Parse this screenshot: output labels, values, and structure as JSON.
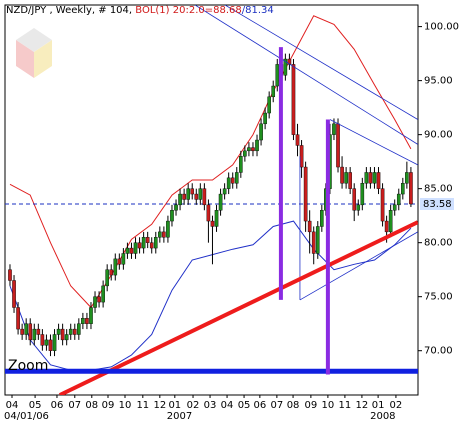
{
  "chart_data": {
    "type": "candlestick",
    "title": "NZD/JPY , Weekly, # 104, ",
    "indicator_upper": "BOL(1) 20:2.0=88.68",
    "indicator_lower": "/81.34",
    "zoom_label": "Zoom",
    "up_color": "#1f8f1f",
    "down_color": "#c81e1e",
    "xlim": [
      -1.23,
      100.75
    ],
    "ylim": [
      65.9,
      102.0
    ],
    "yticks": [
      {
        "value": 70,
        "label": "70.00"
      },
      {
        "value": 75,
        "label": "75.00"
      },
      {
        "value": 80,
        "label": "80.00"
      },
      {
        "value": 85,
        "label": "85.00"
      },
      {
        "value": 90,
        "label": "90.00"
      },
      {
        "value": 95,
        "label": "95.00"
      },
      {
        "value": 100,
        "label": "100.00"
      }
    ],
    "xticks": [
      {
        "value": 0.5,
        "label": "04"
      },
      {
        "value": 6.2,
        "label": "05"
      },
      {
        "value": 11.6,
        "label": "06"
      },
      {
        "value": 16,
        "label": "07"
      },
      {
        "value": 20.2,
        "label": "08"
      },
      {
        "value": 24.2,
        "label": "09"
      },
      {
        "value": 28.4,
        "label": "10"
      },
      {
        "value": 32.8,
        "label": "11"
      },
      {
        "value": 37,
        "label": "12"
      },
      {
        "value": 40.7,
        "label": "01"
      },
      {
        "value": 45.2,
        "label": "02"
      },
      {
        "value": 49.4,
        "label": "03"
      },
      {
        "value": 53.6,
        "label": "04"
      },
      {
        "value": 57.8,
        "label": "05"
      },
      {
        "value": 61.7,
        "label": "06"
      },
      {
        "value": 65.9,
        "label": "07"
      },
      {
        "value": 69.9,
        "label": "08"
      },
      {
        "value": 74.3,
        "label": "09"
      },
      {
        "value": 78.5,
        "label": "10"
      },
      {
        "value": 82.7,
        "label": "11"
      },
      {
        "value": 86.9,
        "label": "12"
      },
      {
        "value": 90.9,
        "label": "01"
      },
      {
        "value": 95.3,
        "label": "02"
      }
    ],
    "xlabels2": [
      {
        "value": 0.5,
        "label": "04/01/06"
      },
      {
        "value": 40.7,
        "label": "2007"
      },
      {
        "value": 90.9,
        "label": "2008"
      }
    ],
    "open": [
      77.5,
      76.5,
      74,
      72,
      71.5,
      72.5,
      71,
      72,
      71.5,
      70.5,
      71,
      70,
      71.5,
      72,
      71,
      71.5,
      72,
      71.5,
      72.5,
      73,
      72.5,
      74,
      75,
      74.5,
      76,
      77.5,
      77,
      78.5,
      78,
      79,
      79.5,
      79,
      80,
      79.5,
      80.5,
      80,
      79.5,
      80.5,
      81,
      80.5,
      82,
      83,
      83.5,
      84.5,
      84,
      85,
      84.5,
      84,
      85,
      83.5,
      82,
      81.5,
      83,
      84.5,
      85,
      86,
      85.5,
      86.5,
      88,
      88.5,
      88.8,
      88.5,
      89.5,
      91,
      92,
      93.5,
      94.5,
      96.5,
      95.5,
      97,
      96.5,
      90,
      89,
      87,
      82,
      81,
      79,
      81.5,
      83,
      85,
      90,
      91,
      87,
      85.5,
      86.5,
      85,
      83,
      83.5,
      85.5,
      86.5,
      85.5,
      86.5,
      85,
      82,
      81,
      83,
      83.5,
      84.5,
      85.5,
      86.5
    ],
    "high": [
      78,
      77,
      74.5,
      72.5,
      73,
      73,
      72.5,
      72.5,
      72,
      71.5,
      71.5,
      72,
      72.5,
      72.5,
      72,
      72.5,
      72.5,
      73,
      73.5,
      73.5,
      74.5,
      75.5,
      75.5,
      76.5,
      78,
      78,
      79,
      79,
      79.5,
      80,
      80,
      80.5,
      80.5,
      81,
      81,
      80.5,
      81,
      81.5,
      81.5,
      82.5,
      83.5,
      84,
      85,
      85,
      85.5,
      85.5,
      85,
      85.5,
      85.5,
      84,
      82.5,
      83.5,
      85,
      85.5,
      86.5,
      86.5,
      87,
      88.5,
      89,
      89.3,
      89.3,
      90,
      91.5,
      92.5,
      94,
      95,
      97,
      97.5,
      97.5,
      97.5,
      97,
      91,
      89.5,
      87.5,
      83,
      81.5,
      82,
      83.5,
      85.5,
      91,
      91.5,
      91.5,
      88,
      87,
      87,
      85.5,
      84,
      86,
      87,
      87,
      87,
      87,
      85.5,
      82.5,
      83.5,
      84,
      85,
      86,
      87.5,
      87
    ],
    "low": [
      76,
      73.5,
      71.5,
      71,
      71,
      70.5,
      70.5,
      71,
      70,
      70,
      69.5,
      69.5,
      71,
      70.5,
      70.5,
      71,
      71,
      71,
      72,
      72,
      72,
      73.5,
      74,
      74,
      75.5,
      76.5,
      76.5,
      77.5,
      77.5,
      78.5,
      78.5,
      78.5,
      79,
      79,
      79.5,
      79,
      79,
      80,
      80,
      80,
      81.5,
      82.5,
      83,
      83.5,
      83.5,
      84,
      83.5,
      83.5,
      83,
      80,
      78,
      81,
      82.5,
      84,
      84.5,
      85,
      85,
      86,
      87.5,
      88,
      88,
      88,
      89,
      90.5,
      91.5,
      93,
      94,
      95,
      95,
      96,
      89.5,
      88,
      86,
      81,
      79,
      78,
      78.5,
      81,
      82.5,
      84.5,
      89.5,
      86.5,
      85,
      85,
      84.5,
      82,
      82.5,
      83,
      85,
      85,
      85,
      84.5,
      81.5,
      80,
      80.5,
      82.5,
      83,
      84,
      85,
      83.3
    ],
    "close": [
      76.5,
      74,
      72,
      71.5,
      72.5,
      71,
      72,
      71.5,
      70.5,
      71,
      70,
      71.5,
      72,
      71,
      71.5,
      72,
      71.5,
      72.5,
      73,
      72.5,
      74,
      75,
      74.5,
      76,
      77.5,
      77,
      78.5,
      78,
      79,
      79.5,
      79,
      80,
      79.5,
      80.5,
      80,
      79.5,
      80.5,
      81,
      80.5,
      82,
      83,
      83.5,
      84.5,
      84,
      85,
      84.5,
      84,
      85,
      83.5,
      82,
      81.5,
      83,
      84.5,
      85,
      86,
      85.5,
      86.5,
      88,
      88.5,
      88.8,
      88.5,
      89.5,
      91,
      92,
      93.5,
      94.5,
      96.5,
      95.5,
      97,
      96.5,
      90,
      89,
      87,
      82,
      81,
      79,
      81.5,
      83,
      85,
      90,
      91,
      87,
      85.5,
      86.5,
      85,
      83,
      83.5,
      85.5,
      86.5,
      85.5,
      86.5,
      85,
      82,
      81,
      83,
      83.5,
      84.5,
      85.5,
      86.5,
      83.58
    ],
    "bands": [
      {
        "color": "#e02020",
        "x": [
          0,
          5,
          10,
          15,
          20,
          25,
          30,
          35,
          40,
          45,
          50,
          55,
          60,
          65,
          70,
          75,
          80,
          85,
          90,
          95,
          99
        ],
        "values": [
          85.4,
          84.4,
          80,
          76,
          74,
          77,
          80.3,
          81.7,
          84.4,
          85.8,
          85.8,
          87.2,
          90,
          94,
          97.5,
          101,
          100.2,
          97.9,
          94.6,
          91.4,
          88.68
        ]
      },
      {
        "color": "#2030c8",
        "x": [
          0,
          5,
          10,
          15,
          20,
          25,
          30,
          35,
          40,
          45,
          50,
          55,
          60,
          65,
          70,
          75,
          80,
          85,
          90,
          95,
          99
        ],
        "values": [
          76,
          71,
          68.7,
          68.2,
          68.2,
          68.5,
          69.6,
          71.5,
          75.6,
          78.4,
          78.9,
          79.4,
          79.8,
          81.5,
          82,
          79.4,
          77.5,
          78,
          78.4,
          79.8,
          81.34
        ]
      }
    ],
    "lines": [
      {
        "color": "#2030c8",
        "width": 0.8,
        "x": [
          45.7,
          100.7
        ],
        "values": [
          102,
          89.1
        ]
      },
      {
        "color": "#2030c8",
        "width": 0.8,
        "x": [
          53.1,
          100.7
        ],
        "values": [
          102,
          91.4
        ]
      },
      {
        "color": "#2030c8",
        "width": 0.8,
        "x": [
          79,
          100.7
        ],
        "values": [
          91.4,
          87.2
        ]
      },
      {
        "color": "#2030c8",
        "width": 0.8,
        "x": [
          71.6,
          100.7
        ],
        "values": [
          74.7,
          81
        ]
      },
      {
        "color": "#2030c8",
        "width": 0.8,
        "x": [
          71.6,
          71.6
        ],
        "values": [
          74.7,
          88
        ]
      },
      {
        "color": "#ee1c1c",
        "width": 4,
        "x": [
          12.3,
          100.7
        ],
        "values": [
          65.9,
          81.9
        ]
      },
      {
        "color": "#1020e0",
        "width": 5,
        "x": [
          -1.23,
          100.75
        ],
        "values": [
          68.1,
          68.1
        ]
      },
      {
        "color": "#8a2be2",
        "width": 4,
        "x": [
          66.9,
          66.9
        ],
        "values": [
          98.1,
          74.7
        ]
      },
      {
        "color": "#8a2be2",
        "width": 4,
        "x": [
          78.5,
          78.5
        ],
        "values": [
          91.4,
          67.8
        ]
      }
    ],
    "last_price": 83.58,
    "last_color": "#1a2fc0"
  }
}
